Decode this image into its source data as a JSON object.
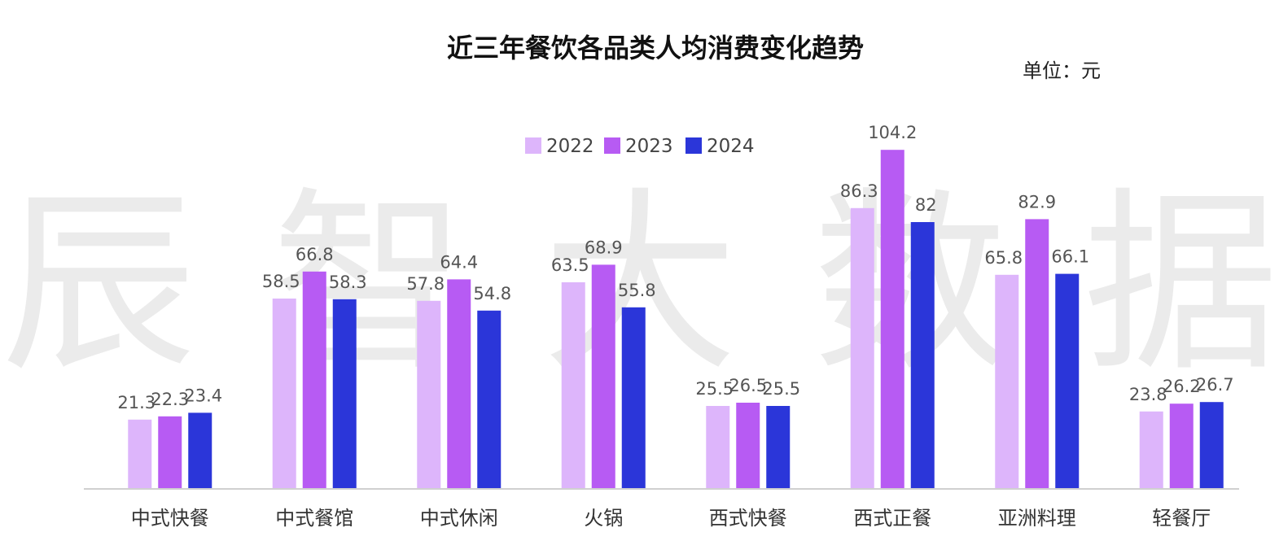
{
  "watermark": "辰 智 大 数 据",
  "chart_data": {
    "type": "bar",
    "title": "近三年餐饮各品类人均消费变化趋势",
    "unit_label": "单位：元",
    "categories": [
      "中式快餐",
      "中式餐馆",
      "中式休闲",
      "火锅",
      "西式快餐",
      "西式正餐",
      "亚洲料理",
      "轻餐厅"
    ],
    "series": [
      {
        "name": "2022",
        "color": "#ddb5fb",
        "values": [
          21.3,
          58.5,
          57.8,
          63.5,
          25.5,
          86.3,
          65.8,
          23.8
        ]
      },
      {
        "name": "2023",
        "color": "#b75bf3",
        "values": [
          22.3,
          66.8,
          64.4,
          68.9,
          26.5,
          104.2,
          82.9,
          26.2
        ]
      },
      {
        "name": "2024",
        "color": "#2b36d9",
        "values": [
          23.4,
          58.3,
          54.8,
          55.8,
          25.5,
          82,
          66.1,
          26.7
        ]
      }
    ],
    "legend_position": "top-center",
    "ylim": [
      0,
      110
    ],
    "grid": false,
    "data_labels": true
  }
}
